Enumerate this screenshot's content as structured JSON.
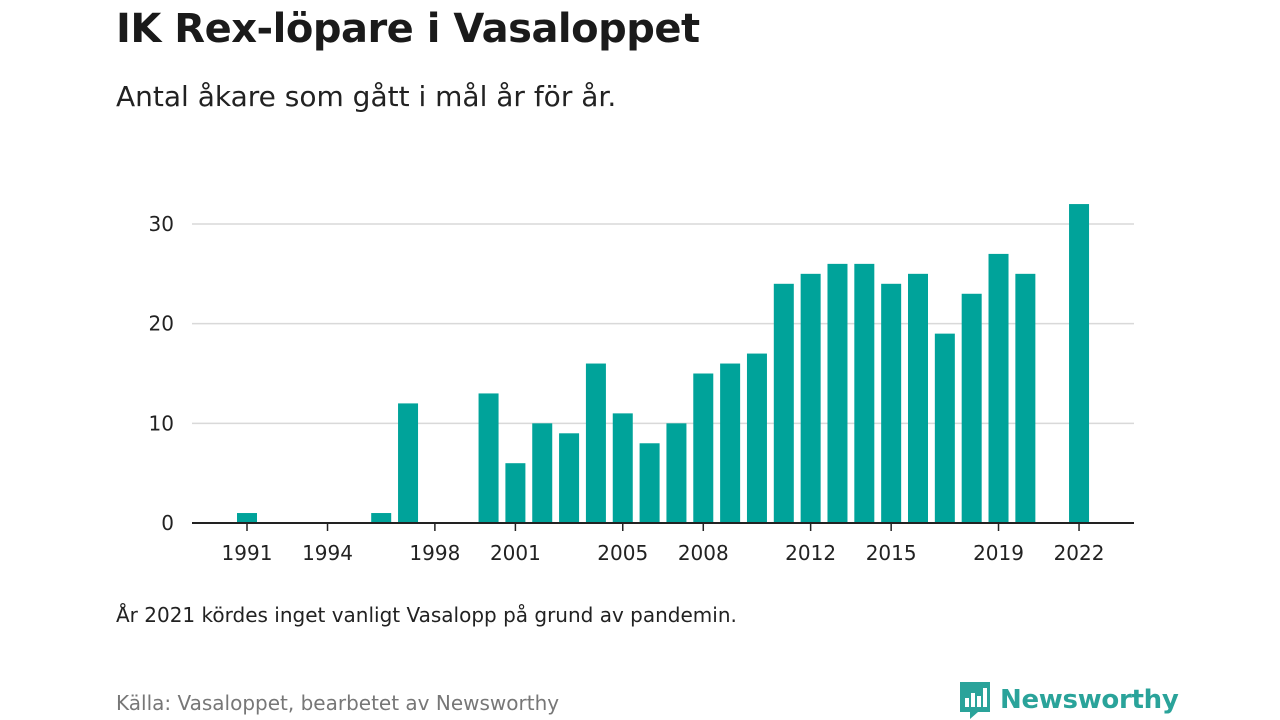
{
  "header": {
    "title": "IK Rex-löpare i Vasaloppet",
    "subtitle": "Antal åkare som gått i mål år för år."
  },
  "footer": {
    "note": "År 2021 kördes inget vanligt Vasalopp på grund av pandemin.",
    "source": "Källa: Vasaloppet, bearbetet av Newsworthy",
    "brand": "Newsworthy"
  },
  "colors": {
    "bar": "#00a39a",
    "grid": "#d9d9d9",
    "axis": "#222222",
    "brand": "#2aa39a"
  },
  "chart_data": {
    "type": "bar",
    "title": "IK Rex-löpare i Vasaloppet",
    "subtitle": "Antal åkare som gått i mål år för år.",
    "xlabel": "",
    "ylabel": "",
    "categories": [
      1990,
      1991,
      1992,
      1993,
      1994,
      1995,
      1996,
      1997,
      1998,
      1999,
      2000,
      2001,
      2002,
      2003,
      2004,
      2005,
      2006,
      2007,
      2008,
      2009,
      2010,
      2011,
      2012,
      2013,
      2014,
      2015,
      2016,
      2017,
      2018,
      2019,
      2020,
      2021,
      2022,
      2023
    ],
    "values": [
      0,
      1,
      0,
      0,
      0,
      0,
      1,
      12,
      0,
      0,
      13,
      6,
      10,
      9,
      16,
      11,
      8,
      10,
      15,
      16,
      17,
      24,
      25,
      26,
      26,
      24,
      25,
      19,
      23,
      27,
      25,
      null,
      32,
      0
    ],
    "x_tick_labels": [
      "1991",
      "1994",
      "1998",
      "2001",
      "2005",
      "2008",
      "2012",
      "2015",
      "2019",
      "2022"
    ],
    "y_ticks": [
      0,
      10,
      20,
      30
    ],
    "ylim": [
      0,
      32
    ],
    "grid": true,
    "legend": "none"
  }
}
